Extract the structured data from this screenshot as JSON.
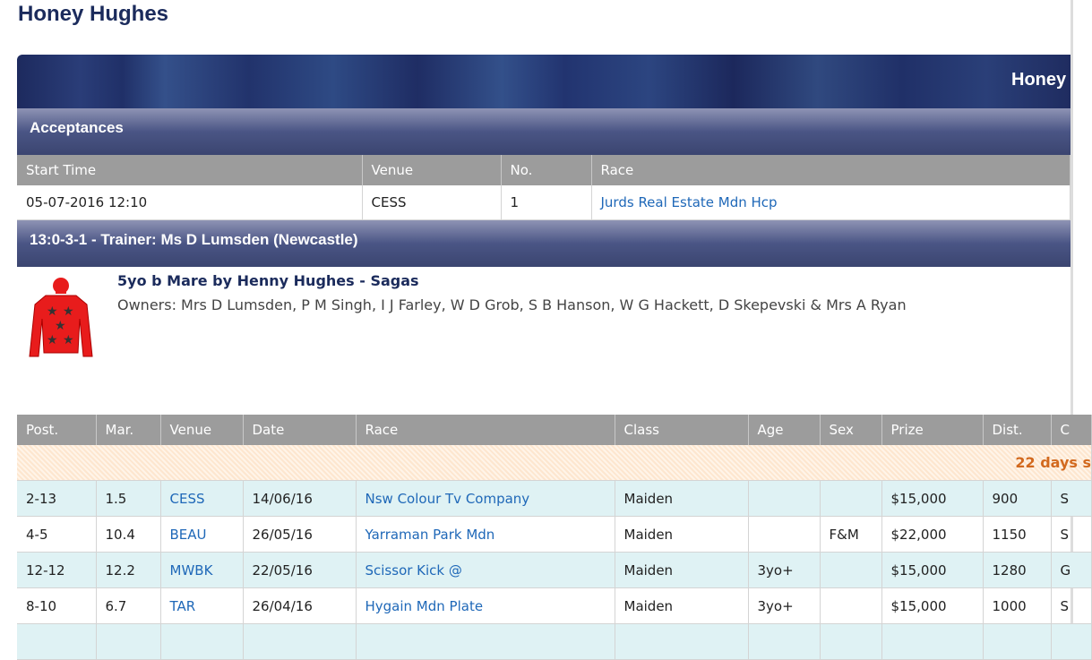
{
  "page_title": "Honey Hughes",
  "banner_title": "Honey",
  "acceptances": {
    "title": "Acceptances",
    "columns": [
      "Start Time",
      "Venue",
      "No.",
      "Race"
    ],
    "rows": [
      {
        "start": "05-07-2016 12:10",
        "venue": "CESS",
        "no": "1",
        "race": "Jurds Real Estate Mdn Hcp"
      }
    ]
  },
  "trainer_bar": "13:0-3-1 - Trainer: Ms D Lumsden (Newcastle)",
  "horse": {
    "description": "5yo b Mare by Henny Hughes - Sagas",
    "owners": "Owners: Mrs D Lumsden, P M Singh, I J Farley, W D Grob, S B Hanson, W G Hackett, D Skepevski & Mrs A Ryan",
    "silks_colors": {
      "body": "#e81c1c",
      "stars": "#333333"
    }
  },
  "form": {
    "columns": [
      "Post.",
      "Mar.",
      "Venue",
      "Date",
      "Race",
      "Class",
      "Age",
      "Sex",
      "Prize",
      "Dist.",
      "C"
    ],
    "notice": "22 days s",
    "rows": [
      {
        "post": "2-13",
        "mar": "1.5",
        "venue": "CESS",
        "date": "14/06/16",
        "race": "Nsw Colour Tv Company",
        "class": "Maiden",
        "age": "",
        "sex": "",
        "prize": "$15,000",
        "dist": "900",
        "c": "S"
      },
      {
        "post": "4-5",
        "mar": "10.4",
        "venue": "BEAU",
        "date": "26/05/16",
        "race": "Yarraman Park Mdn",
        "class": "Maiden",
        "age": "",
        "sex": "F&M",
        "prize": "$22,000",
        "dist": "1150",
        "c": "S"
      },
      {
        "post": "12-12",
        "mar": "12.2",
        "venue": "MWBK",
        "date": "22/05/16",
        "race": "Scissor Kick @",
        "class": "Maiden",
        "age": "3yo+",
        "sex": "",
        "prize": "$15,000",
        "dist": "1280",
        "c": "G"
      },
      {
        "post": "8-10",
        "mar": "6.7",
        "venue": "TAR",
        "date": "26/04/16",
        "race": "Hygain Mdn Plate",
        "class": "Maiden",
        "age": "3yo+",
        "sex": "",
        "prize": "$15,000",
        "dist": "1000",
        "c": "S"
      }
    ]
  }
}
